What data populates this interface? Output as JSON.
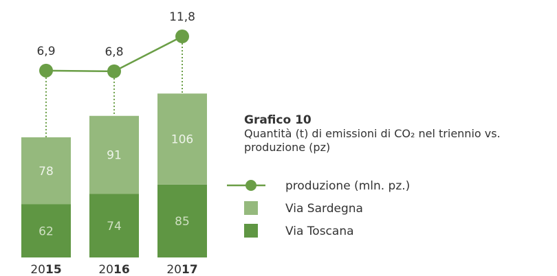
{
  "chart_data": {
    "type": "bar",
    "title": "Grafico 10",
    "subtitle": "Quantità (t) di emissioni di CO₂ nel triennio vs. produzione (pz)",
    "categories": [
      "2015",
      "2016",
      "2017"
    ],
    "series": [
      {
        "name": "Via Toscana",
        "color": "#5f9643",
        "values": [
          62,
          74,
          85
        ]
      },
      {
        "name": "Via Sardegna",
        "color": "#95b97d",
        "values": [
          78,
          91,
          106
        ]
      },
      {
        "name": "produzione (mln. pz.)",
        "color": "#6a9e46",
        "type": "line",
        "axis": "y2",
        "values": [
          6.9,
          6.8,
          11.8
        ],
        "value_labels": [
          "6,9",
          "6,8",
          "11,8"
        ]
      }
    ],
    "ylim": [
      0,
      240
    ],
    "y2lim": [
      0,
      12
    ]
  }
}
